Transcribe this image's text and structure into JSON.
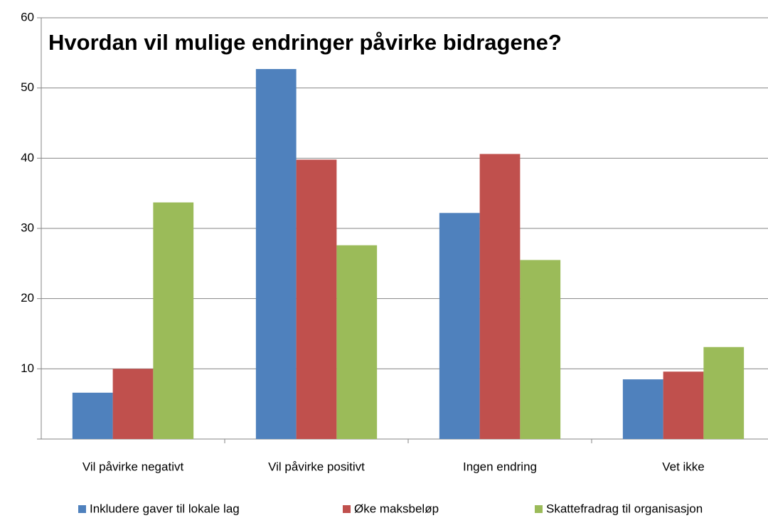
{
  "chart_data": {
    "type": "bar",
    "title": "Hvordan vil mulige endringer påvirke bidragene?",
    "categories": [
      "Vil påvirke negativt",
      "Vil påvirke positivt",
      "Ingen endring",
      "Vet ikke"
    ],
    "series": [
      {
        "name": "Inkludere gaver til lokale lag",
        "color": "#4f81bd",
        "values": [
          6.6,
          52.7,
          32.2,
          8.5
        ]
      },
      {
        "name": "Øke maksbeløp",
        "color": "#c0504d",
        "values": [
          10,
          39.8,
          40.6,
          9.6
        ]
      },
      {
        "name": "Skattefradrag til organisasjon",
        "color": "#9bbb59",
        "values": [
          33.7,
          27.6,
          25.5,
          13.1
        ]
      }
    ],
    "ylim": [
      0,
      60
    ],
    "yticks": [
      10,
      20,
      30,
      40,
      50,
      60
    ],
    "grid": true,
    "legend": "bottom"
  }
}
